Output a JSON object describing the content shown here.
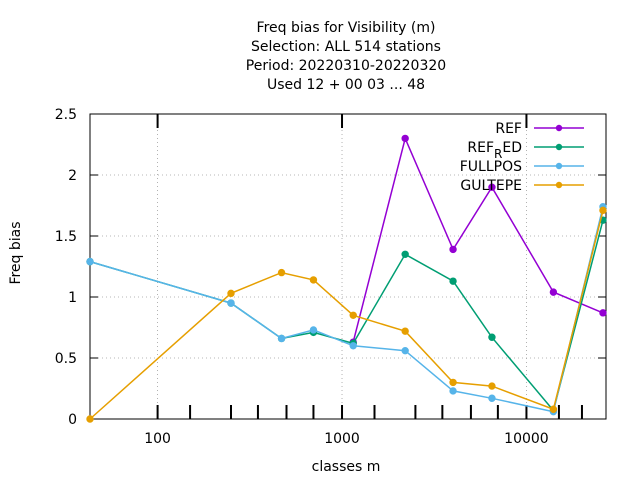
{
  "chart_data": {
    "type": "line",
    "title_lines": [
      "Freq bias  for Visibility (m)",
      "Selection: ALL    514 stations",
      "Period: 20220310-20220320",
      "Used  12 + 00 03 ... 48"
    ],
    "xlabel": "classes m",
    "ylabel": "Freq bias",
    "x_scale": "log",
    "xlim": [
      43,
      27000
    ],
    "ylim": [
      0,
      2.5
    ],
    "x_tick_labels": [
      "100",
      "1000",
      "10000"
    ],
    "x_ticks": [
      100,
      1000,
      10000
    ],
    "y_ticks": [
      0,
      0.5,
      1,
      1.5,
      2,
      2.5
    ],
    "y_tick_labels": [
      "0",
      "0.5",
      "1",
      "1.5",
      "2",
      "2.5"
    ],
    "minor_x_ticks": [
      150,
      250,
      350,
      500,
      700,
      1500,
      2500,
      3500,
      5000,
      7000,
      15000,
      20000
    ],
    "grid": true,
    "legend_position": "top-right",
    "series": [
      {
        "name": "REF",
        "color": "#9400d3",
        "points": [
          [
            1150,
            0.63
          ],
          [
            2200,
            2.3
          ],
          [
            4000,
            1.39
          ],
          [
            6500,
            1.9
          ],
          [
            14000,
            1.04
          ],
          [
            26000,
            0.87
          ]
        ]
      },
      {
        "name": "REF_RED",
        "color": "#009e73",
        "points": [
          [
            43,
            1.29
          ],
          [
            250,
            0.95
          ],
          [
            470,
            0.66
          ],
          [
            700,
            0.71
          ],
          [
            1150,
            0.62
          ],
          [
            2200,
            1.35
          ],
          [
            4000,
            1.13
          ],
          [
            6500,
            0.67
          ],
          [
            14000,
            0.07
          ],
          [
            26000,
            1.63
          ]
        ]
      },
      {
        "name": "FULLPOS",
        "color": "#56b4e9",
        "points": [
          [
            43,
            1.29
          ],
          [
            250,
            0.95
          ],
          [
            470,
            0.66
          ],
          [
            700,
            0.73
          ],
          [
            1150,
            0.6
          ],
          [
            2200,
            0.56
          ],
          [
            4000,
            0.23
          ],
          [
            6500,
            0.17
          ],
          [
            14000,
            0.06
          ],
          [
            26000,
            1.74
          ]
        ]
      },
      {
        "name": "GULTEPE",
        "color": "#e69f00",
        "points": [
          [
            43,
            0.0
          ],
          [
            250,
            1.03
          ],
          [
            470,
            1.2
          ],
          [
            700,
            1.14
          ],
          [
            1150,
            0.85
          ],
          [
            2200,
            0.72
          ],
          [
            4000,
            0.3
          ],
          [
            6500,
            0.27
          ],
          [
            14000,
            0.08
          ],
          [
            26000,
            1.71
          ]
        ]
      }
    ]
  }
}
